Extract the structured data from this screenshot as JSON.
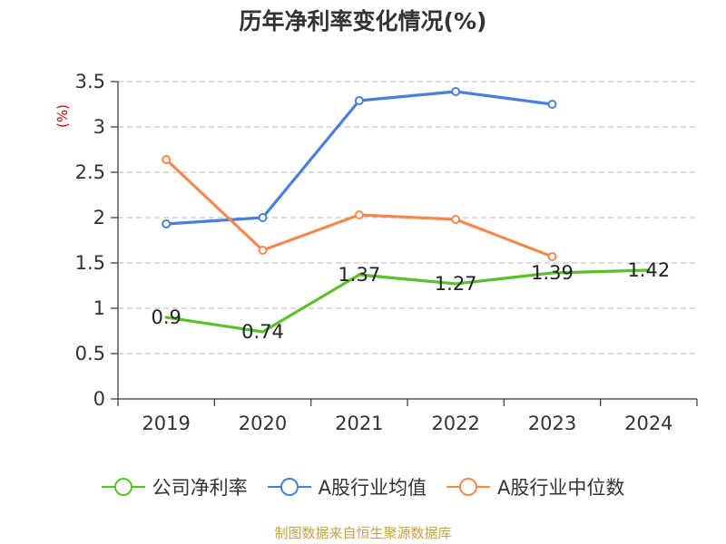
{
  "title": "历年净利率变化情况(%)",
  "source": "制图数据来自恒生聚源数据库",
  "chart_data": {
    "type": "line",
    "title": "历年净利率变化情况(%)",
    "xlabel": "",
    "ylabel": "(%)",
    "ylim": [
      0,
      3.5
    ],
    "yticks": [
      "0",
      "0.5",
      "1",
      "1.5",
      "2",
      "2.5",
      "3",
      "3.5"
    ],
    "categories": [
      "2019",
      "2020",
      "2021",
      "2022",
      "2023",
      "2024"
    ],
    "grid": "horizontal-dashed",
    "legend_position": "bottom",
    "series": [
      {
        "name": "公司净利率",
        "color": "#5ac12a",
        "values": [
          0.9,
          0.74,
          1.37,
          1.27,
          1.39,
          1.42
        ],
        "labels": [
          "0.9",
          "0.74",
          "1.37",
          "1.27",
          "1.39",
          "1.42"
        ],
        "show_markers": false
      },
      {
        "name": "A股行业均值",
        "color": "#4a7fdc",
        "values": [
          1.93,
          2.0,
          3.29,
          3.39,
          3.25,
          null
        ],
        "show_markers": true
      },
      {
        "name": "A股行业中位数",
        "color": "#f4894f",
        "values": [
          2.64,
          1.64,
          2.03,
          1.98,
          1.57,
          null
        ],
        "show_markers": true
      }
    ]
  }
}
